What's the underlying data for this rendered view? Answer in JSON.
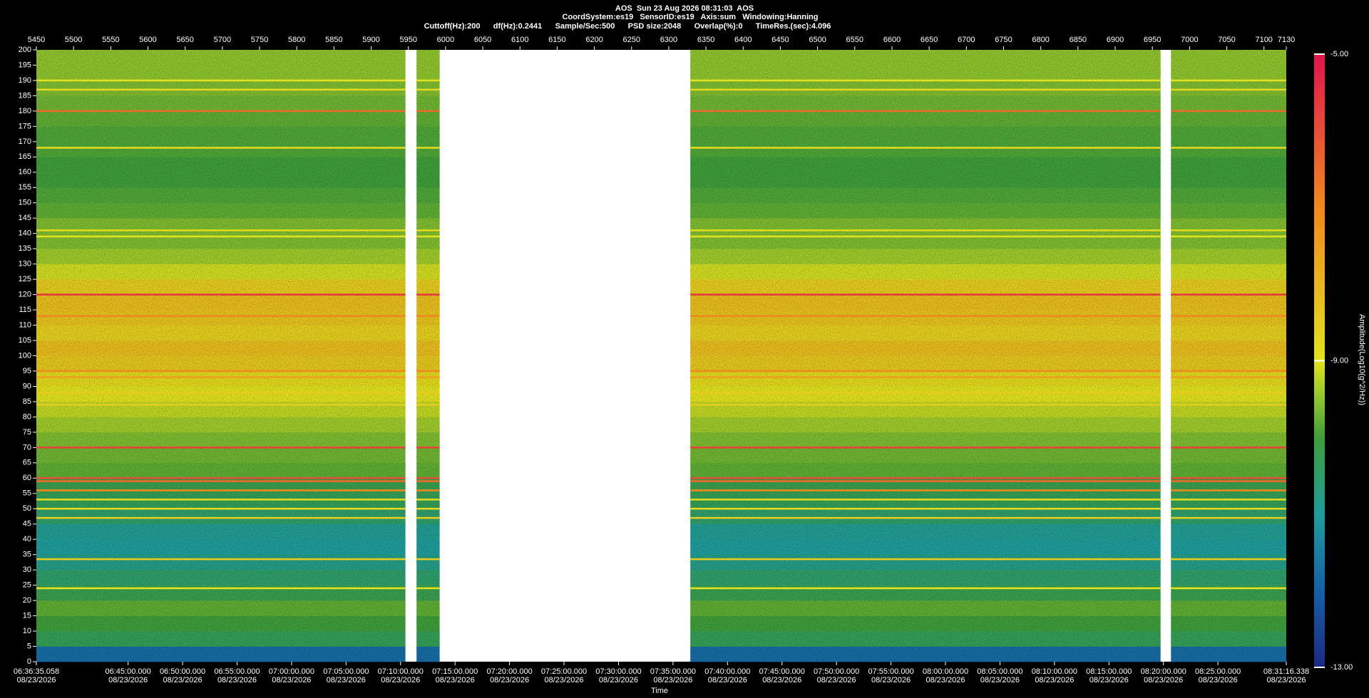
{
  "chart_data": {
    "type": "spectrogram",
    "title": "AOS  Sun 23 Aug 2026 08:31:03  AOS",
    "subtitle": "CoordSystem:es19   SensorID:es19   Axis:sum   Windowing:Hanning",
    "info": "Cuttoff(Hz):200      df(Hz):0.2441      Sample/Sec:500      PSD size:2048      Overlap(%):0      TimeRes.(sec):4.096",
    "x_label": "Time",
    "date": "08/23/2026",
    "xlim": [
      23795.058,
      30676.338
    ],
    "xticks": [
      {
        "value": 23795.058,
        "label": "06:36:35.058"
      },
      {
        "value": 24300,
        "label": "06:45:00.000"
      },
      {
        "value": 24600,
        "label": "06:50:00.000"
      },
      {
        "value": 24900,
        "label": "06:55:00.000"
      },
      {
        "value": 25200,
        "label": "07:00:00.000"
      },
      {
        "value": 25500,
        "label": "07:05:00.000"
      },
      {
        "value": 25800,
        "label": "07:10:00.000"
      },
      {
        "value": 26100,
        "label": "07:15:00.000"
      },
      {
        "value": 26400,
        "label": "07:20:00.000"
      },
      {
        "value": 26700,
        "label": "07:25:00.000"
      },
      {
        "value": 27000,
        "label": "07:30:00.000"
      },
      {
        "value": 27300,
        "label": "07:35:00.000"
      },
      {
        "value": 27600,
        "label": "07:40:00.000"
      },
      {
        "value": 27900,
        "label": "07:45:00.000"
      },
      {
        "value": 28200,
        "label": "07:50:00.000"
      },
      {
        "value": 28500,
        "label": "07:55:00.000"
      },
      {
        "value": 28800,
        "label": "08:00:00.000"
      },
      {
        "value": 29100,
        "label": "08:05:00.000"
      },
      {
        "value": 29400,
        "label": "08:10:00.000"
      },
      {
        "value": 29700,
        "label": "08:15:00.000"
      },
      {
        "value": 30000,
        "label": "08:20:00.000"
      },
      {
        "value": 30300,
        "label": "08:25:00.000"
      },
      {
        "value": 30676.338,
        "label": "08:31:16.338"
      }
    ],
    "x2lim": [
      5450,
      7130
    ],
    "x2ticks": [
      5450,
      5500,
      5550,
      5600,
      5650,
      5700,
      5750,
      5800,
      5850,
      5900,
      5950,
      6000,
      6050,
      6100,
      6150,
      6200,
      6250,
      6300,
      6350,
      6400,
      6450,
      6500,
      6550,
      6600,
      6650,
      6700,
      6750,
      6800,
      6850,
      6900,
      6950,
      7000,
      7050,
      7100,
      7130
    ],
    "ylim": [
      0,
      200
    ],
    "yticks": [
      0,
      5,
      10,
      15,
      20,
      25,
      30,
      35,
      40,
      45,
      50,
      55,
      60,
      65,
      70,
      75,
      80,
      85,
      90,
      95,
      100,
      105,
      110,
      115,
      120,
      125,
      130,
      135,
      140,
      145,
      150,
      155,
      160,
      165,
      170,
      175,
      180,
      185,
      190,
      195,
      200
    ],
    "segments": [
      [
        5450,
        5946
      ],
      [
        5961,
        5992
      ],
      [
        6329,
        6961
      ],
      [
        6975,
        7130
      ]
    ],
    "bands": {
      "edges": [
        0,
        5,
        10,
        15,
        20,
        25,
        30,
        35,
        40,
        45,
        50,
        55,
        60,
        65,
        70,
        75,
        80,
        85,
        90,
        95,
        100,
        105,
        110,
        115,
        120,
        125,
        130,
        135,
        140,
        145,
        150,
        155,
        160,
        165,
        170,
        175,
        180,
        185,
        190,
        195,
        200
      ],
      "values": [
        -11.8,
        -10.3,
        -10.0,
        -9.8,
        -10.2,
        -10.5,
        -10.8,
        -11.0,
        -10.9,
        -10.5,
        -10.3,
        -10.2,
        -9.8,
        -9.7,
        -9.6,
        -9.4,
        -9.2,
        -9.0,
        -8.8,
        -8.4,
        -8.2,
        -8.6,
        -8.3,
        -8.2,
        -8.5,
        -9.1,
        -9.4,
        -9.6,
        -9.6,
        -9.8,
        -9.9,
        -10.0,
        -10.0,
        -9.9,
        -9.9,
        -9.8,
        -9.7,
        -9.6,
        -9.5,
        -9.5
      ]
    },
    "lines": [
      {
        "freq": 120,
        "value": -5.6
      },
      {
        "freq": 180,
        "value": -6.5
      },
      {
        "freq": 70,
        "value": -5.8
      },
      {
        "freq": 60,
        "value": -6.0
      },
      {
        "freq": 59,
        "value": -6.5
      },
      {
        "freq": 56,
        "value": -7.0
      },
      {
        "freq": 95,
        "value": -7.0
      },
      {
        "freq": 93,
        "value": -7.5
      },
      {
        "freq": 113,
        "value": -7.0
      },
      {
        "freq": 47,
        "value": -8.5
      },
      {
        "freq": 33.5,
        "value": -8.5
      },
      {
        "freq": 53,
        "value": -8.8
      },
      {
        "freq": 50,
        "value": -8.8
      },
      {
        "freq": 187,
        "value": -8.8
      },
      {
        "freq": 190,
        "value": -9.0
      },
      {
        "freq": 141,
        "value": -8.8
      },
      {
        "freq": 139,
        "value": -9.0
      },
      {
        "freq": 168,
        "value": -8.8
      },
      {
        "freq": 24,
        "value": -9.0
      },
      {
        "freq": 84,
        "value": -8.5
      },
      {
        "freq": 88,
        "value": -8.5
      }
    ],
    "colorbar": {
      "label": "Amplitude(Log10(g^2/Hz))",
      "lim": [
        -13,
        -5
      ],
      "ticks": [
        {
          "value": -13,
          "label": "-13.00"
        },
        {
          "value": -9,
          "label": "-9.00"
        },
        {
          "value": -5,
          "label": "-5.00"
        }
      ],
      "stops": [
        {
          "value": -13,
          "color": "#1b2a82"
        },
        {
          "value": -12,
          "color": "#1560a6"
        },
        {
          "value": -11,
          "color": "#1f9d9c"
        },
        {
          "value": -10,
          "color": "#3f9e3a"
        },
        {
          "value": -9.5,
          "color": "#8fc42e"
        },
        {
          "value": -9,
          "color": "#e2e21e"
        },
        {
          "value": -7,
          "color": "#f0881e"
        },
        {
          "value": -5,
          "color": "#e0144c"
        }
      ]
    }
  }
}
